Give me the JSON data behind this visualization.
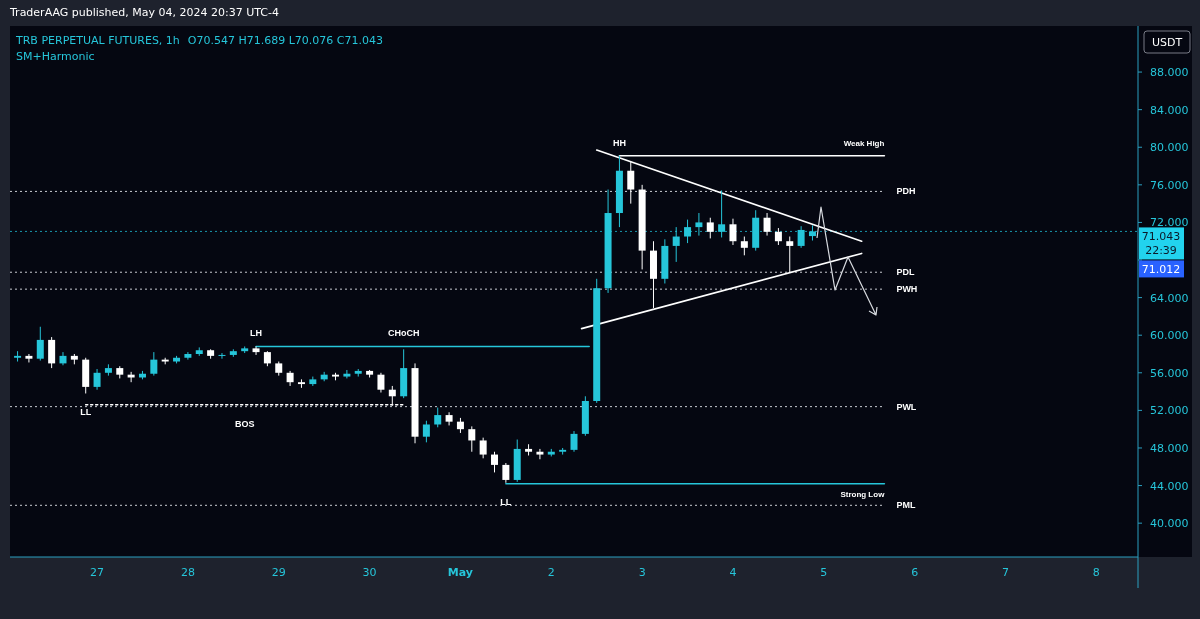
{
  "chart_data": {
    "type": "candlestick",
    "title": "TRB PERPETUAL FUTURES, 1h",
    "subtitle": "SM+Harmonic",
    "ylabel": "USDT",
    "annotations": [
      "TraderAAG published, May 04, 2024 20:37 UTC-4",
      "O70.547 H71.689 L70.076 C71.043",
      "71.012",
      {
        "text": "LL",
        "x": "2024-04-26T21:00",
        "y": 53.8
      },
      {
        "text": "LH",
        "x": "2024-04-28T18:00",
        "y": 58.8
      },
      {
        "text": "BOS",
        "x": "2024-04-28T15:00",
        "y": 52.6
      },
      {
        "text": "CHoCH",
        "x": "2024-04-30T09:00",
        "y": 58.8
      },
      {
        "text": "LL",
        "x": "2024-05-01T12:00",
        "y": 44.3
      },
      {
        "text": "HH",
        "x": "2024-05-02T18:00",
        "y": 79.1
      },
      {
        "text": "Weak High",
        "x": "2024-05-05T16:00",
        "y": 79.1
      },
      {
        "text": "Strong Low",
        "x": "2024-05-05T16:00",
        "y": 44.2
      }
    ],
    "x": [
      "2024-04-26T03:00",
      "2024-04-26T06:00",
      "2024-04-26T09:00",
      "2024-04-26T12:00",
      "2024-04-26T15:00",
      "2024-04-26T18:00",
      "2024-04-26T21:00",
      "2024-04-27T00:00",
      "2024-04-27T03:00",
      "2024-04-27T06:00",
      "2024-04-27T09:00",
      "2024-04-27T12:00",
      "2024-04-27T15:00",
      "2024-04-27T18:00",
      "2024-04-27T21:00",
      "2024-04-28T00:00",
      "2024-04-28T03:00",
      "2024-04-28T06:00",
      "2024-04-28T09:00",
      "2024-04-28T12:00",
      "2024-04-28T15:00",
      "2024-04-28T18:00",
      "2024-04-28T21:00",
      "2024-04-29T00:00",
      "2024-04-29T03:00",
      "2024-04-29T06:00",
      "2024-04-29T09:00",
      "2024-04-29T12:00",
      "2024-04-29T15:00",
      "2024-04-29T18:00",
      "2024-04-29T21:00",
      "2024-04-30T00:00",
      "2024-04-30T03:00",
      "2024-04-30T06:00",
      "2024-04-30T09:00",
      "2024-04-30T12:00",
      "2024-04-30T15:00",
      "2024-04-30T18:00",
      "2024-04-30T21:00",
      "2024-05-01T00:00",
      "2024-05-01T03:00",
      "2024-05-01T06:00",
      "2024-05-01T09:00",
      "2024-05-01T12:00",
      "2024-05-01T15:00",
      "2024-05-01T18:00",
      "2024-05-01T21:00",
      "2024-05-02T00:00",
      "2024-05-02T03:00",
      "2024-05-02T06:00",
      "2024-05-02T09:00",
      "2024-05-02T12:00",
      "2024-05-02T15:00",
      "2024-05-02T18:00",
      "2024-05-02T21:00",
      "2024-05-03T00:00",
      "2024-05-03T03:00",
      "2024-05-03T06:00",
      "2024-05-03T09:00",
      "2024-05-03T12:00",
      "2024-05-03T15:00",
      "2024-05-03T18:00",
      "2024-05-03T21:00",
      "2024-05-04T00:00",
      "2024-05-04T03:00",
      "2024-05-04T06:00",
      "2024-05-04T09:00",
      "2024-05-04T12:00",
      "2024-05-04T15:00",
      "2024-05-04T18:00",
      "2024-05-04T21:00"
    ],
    "ohlc": [
      [
        57.6,
        58.3,
        57.2,
        57.8
      ],
      [
        57.8,
        58.0,
        57.1,
        57.5
      ],
      [
        57.5,
        60.9,
        57.3,
        59.5
      ],
      [
        59.5,
        59.8,
        56.5,
        57.0
      ],
      [
        57.0,
        58.2,
        56.8,
        57.8
      ],
      [
        57.8,
        58.0,
        56.9,
        57.4
      ],
      [
        57.4,
        57.6,
        53.8,
        54.5
      ],
      [
        54.5,
        56.4,
        54.2,
        56.0
      ],
      [
        56.0,
        56.9,
        55.7,
        56.5
      ],
      [
        56.5,
        56.7,
        55.4,
        55.8
      ],
      [
        55.8,
        56.1,
        55.0,
        55.5
      ],
      [
        55.5,
        56.2,
        55.3,
        55.9
      ],
      [
        55.9,
        58.2,
        55.7,
        57.4
      ],
      [
        57.4,
        57.6,
        56.9,
        57.2
      ],
      [
        57.2,
        57.8,
        57.0,
        57.6
      ],
      [
        57.6,
        58.2,
        57.4,
        58.0
      ],
      [
        58.0,
        58.7,
        57.8,
        58.4
      ],
      [
        58.4,
        58.5,
        57.5,
        57.8
      ],
      [
        57.8,
        58.1,
        57.5,
        57.9
      ],
      [
        57.9,
        58.5,
        57.7,
        58.3
      ],
      [
        58.3,
        58.8,
        58.1,
        58.6
      ],
      [
        58.6,
        58.8,
        57.9,
        58.2
      ],
      [
        58.2,
        58.3,
        56.7,
        57.0
      ],
      [
        57.0,
        57.2,
        55.7,
        56.0
      ],
      [
        56.0,
        56.2,
        54.6,
        55.0
      ],
      [
        55.0,
        55.3,
        54.4,
        54.8
      ],
      [
        54.8,
        55.6,
        54.6,
        55.3
      ],
      [
        55.3,
        56.1,
        55.1,
        55.8
      ],
      [
        55.8,
        56.0,
        55.2,
        55.6
      ],
      [
        55.6,
        56.3,
        55.4,
        55.9
      ],
      [
        55.9,
        56.4,
        55.6,
        56.2
      ],
      [
        56.2,
        56.3,
        55.5,
        55.8
      ],
      [
        55.8,
        56.0,
        53.9,
        54.2
      ],
      [
        54.2,
        54.6,
        52.5,
        53.5
      ],
      [
        53.5,
        58.5,
        53.3,
        56.5
      ],
      [
        56.5,
        57.0,
        48.5,
        49.2
      ],
      [
        49.2,
        50.9,
        48.6,
        50.5
      ],
      [
        50.5,
        52.3,
        50.2,
        51.5
      ],
      [
        51.5,
        51.8,
        50.4,
        50.8
      ],
      [
        50.8,
        51.2,
        49.6,
        50.0
      ],
      [
        50.0,
        50.3,
        47.6,
        48.8
      ],
      [
        48.8,
        49.1,
        46.9,
        47.3
      ],
      [
        47.3,
        47.6,
        45.4,
        46.2
      ],
      [
        46.2,
        46.4,
        44.3,
        44.6
      ],
      [
        44.6,
        48.9,
        44.4,
        47.9
      ],
      [
        47.9,
        48.4,
        47.2,
        47.6
      ],
      [
        47.6,
        47.9,
        46.8,
        47.3
      ],
      [
        47.3,
        47.9,
        47.1,
        47.6
      ],
      [
        47.6,
        48.0,
        47.3,
        47.8
      ],
      [
        47.8,
        49.8,
        47.6,
        49.5
      ],
      [
        49.5,
        53.5,
        49.3,
        53.0
      ],
      [
        53.0,
        66.0,
        52.8,
        65.0
      ],
      [
        65.0,
        75.5,
        64.5,
        73.0
      ],
      [
        73.0,
        79.1,
        71.5,
        77.5
      ],
      [
        77.5,
        78.5,
        74.0,
        75.5
      ],
      [
        75.5,
        76.0,
        67.0,
        69.0
      ],
      [
        69.0,
        70.0,
        62.9,
        66.0
      ],
      [
        66.0,
        70.2,
        65.5,
        69.5
      ],
      [
        69.5,
        71.5,
        67.8,
        70.5
      ],
      [
        70.5,
        72.3,
        69.8,
        71.5
      ],
      [
        71.5,
        73.0,
        70.6,
        72.0
      ],
      [
        72.0,
        72.5,
        70.3,
        71.0
      ],
      [
        71.0,
        75.4,
        70.4,
        71.8
      ],
      [
        71.8,
        72.4,
        69.6,
        70.0
      ],
      [
        70.0,
        70.5,
        68.5,
        69.3
      ],
      [
        69.3,
        73.3,
        69.0,
        72.5
      ],
      [
        72.5,
        73.0,
        70.6,
        71.0
      ],
      [
        71.0,
        71.4,
        69.6,
        70.0
      ],
      [
        70.0,
        70.5,
        66.7,
        69.5
      ],
      [
        69.5,
        71.6,
        69.3,
        71.2
      ],
      [
        70.547,
        71.689,
        70.076,
        71.043
      ]
    ],
    "colors": [
      "#26c6da",
      "#ffffff",
      "#26c6da",
      "#ffffff",
      "#26c6da",
      "#ffffff",
      "#ffffff",
      "#26c6da",
      "#26c6da",
      "#ffffff",
      "#ffffff",
      "#26c6da",
      "#26c6da",
      "#ffffff",
      "#26c6da",
      "#26c6da",
      "#26c6da",
      "#ffffff",
      "#26c6da",
      "#26c6da",
      "#26c6da",
      "#ffffff",
      "#ffffff",
      "#ffffff",
      "#ffffff",
      "#ffffff",
      "#26c6da",
      "#26c6da",
      "#ffffff",
      "#26c6da",
      "#26c6da",
      "#ffffff",
      "#ffffff",
      "#ffffff",
      "#26c6da",
      "#ffffff",
      "#26c6da",
      "#26c6da",
      "#ffffff",
      "#ffffff",
      "#ffffff",
      "#ffffff",
      "#ffffff",
      "#ffffff",
      "#26c6da",
      "#ffffff",
      "#ffffff",
      "#26c6da",
      "#26c6da",
      "#26c6da",
      "#26c6da",
      "#26c6da",
      "#26c6da",
      "#26c6da",
      "#ffffff",
      "#ffffff",
      "#ffffff",
      "#26c6da",
      "#26c6da",
      "#26c6da",
      "#26c6da",
      "#ffffff",
      "#26c6da",
      "#ffffff",
      "#ffffff",
      "#26c6da",
      "#ffffff",
      "#ffffff",
      "#ffffff",
      "#26c6da",
      "#26c6da"
    ],
    "series": [
      {
        "type": "line",
        "color": "#26c6da",
        "x": [
          "2024-04-28T18:00",
          "2024-05-02T10:00"
        ],
        "values": [
          58.8,
          58.8
        ]
      },
      {
        "type": "line",
        "color": "#ffffff",
        "line_style": "dotted",
        "x": [
          "2024-04-26T21:00",
          "2024-04-30T09:00"
        ],
        "values": [
          52.6,
          52.6
        ]
      },
      {
        "type": "line",
        "color": "#ffffff",
        "x": [
          "2024-05-02T18:00",
          "2024-05-05T16:00"
        ],
        "values": [
          79.1,
          79.1
        ]
      },
      {
        "type": "line",
        "color": "#26c6da",
        "x": [
          "2024-05-01T12:00",
          "2024-05-05T16:00"
        ],
        "values": [
          44.2,
          44.2
        ]
      },
      {
        "type": "line",
        "color": "#ffffff",
        "x": [
          "2024-05-02T12:00",
          "2024-05-05T10:00"
        ],
        "values": [
          79.7,
          70.0
        ]
      },
      {
        "type": "line",
        "color": "#ffffff",
        "x": [
          "2024-05-02T08:00",
          "2024-05-05T10:00"
        ],
        "values": [
          60.7,
          68.7
        ]
      }
    ],
    "ref_lines": [
      {
        "axis": "y",
        "value": 75.3,
        "label": "PDH",
        "line_style": "dotted"
      },
      {
        "axis": "y",
        "value": 66.7,
        "label": "PDL",
        "line_style": "dotted"
      },
      {
        "axis": "y",
        "value": 64.9,
        "label": "PWH",
        "line_style": "dotted"
      },
      {
        "axis": "y",
        "value": 52.4,
        "label": "PWL",
        "line_style": "dotted"
      },
      {
        "axis": "y",
        "value": 41.9,
        "label": "PML",
        "line_style": "dotted"
      },
      {
        "axis": "y",
        "value": 71.043,
        "label": "71.043\n22:39",
        "line_style": "dotted",
        "color": "#22d3ee"
      }
    ],
    "xlim": [
      "2024-04-26T01:00",
      "2024-05-08T11:00"
    ],
    "xticks": [
      {
        "value": "2024-04-27",
        "label": "27"
      },
      {
        "value": "2024-04-28",
        "label": "28"
      },
      {
        "value": "2024-04-29",
        "label": "29"
      },
      {
        "value": "2024-04-30",
        "label": "30"
      },
      {
        "value": "2024-05-01",
        "label": "May"
      },
      {
        "value": "2024-05-02",
        "label": "2"
      },
      {
        "value": "2024-05-03",
        "label": "3"
      },
      {
        "value": "2024-05-04",
        "label": "4"
      },
      {
        "value": "2024-05-05",
        "label": "5"
      },
      {
        "value": "2024-05-06",
        "label": "6"
      },
      {
        "value": "2024-05-07",
        "label": "7"
      },
      {
        "value": "2024-05-08",
        "label": "8"
      }
    ],
    "ylim": [
      36.4,
      92.9
    ],
    "yticks": [
      {
        "value": 40,
        "label": "40.000"
      },
      {
        "value": 44,
        "label": "44.000"
      },
      {
        "value": 48,
        "label": "48.000"
      },
      {
        "value": 52,
        "label": "52.000"
      },
      {
        "value": 56,
        "label": "56.000"
      },
      {
        "value": 60,
        "label": "60.000"
      },
      {
        "value": 64,
        "label": "64.000"
      },
      {
        "value": 68,
        "label": null
      },
      {
        "value": 72,
        "label": "72.000"
      },
      {
        "value": 76,
        "label": "76.000"
      },
      {
        "value": 80,
        "label": "80.000"
      },
      {
        "value": 84,
        "label": "84.000"
      },
      {
        "value": 88,
        "label": "88.000"
      }
    ]
  }
}
